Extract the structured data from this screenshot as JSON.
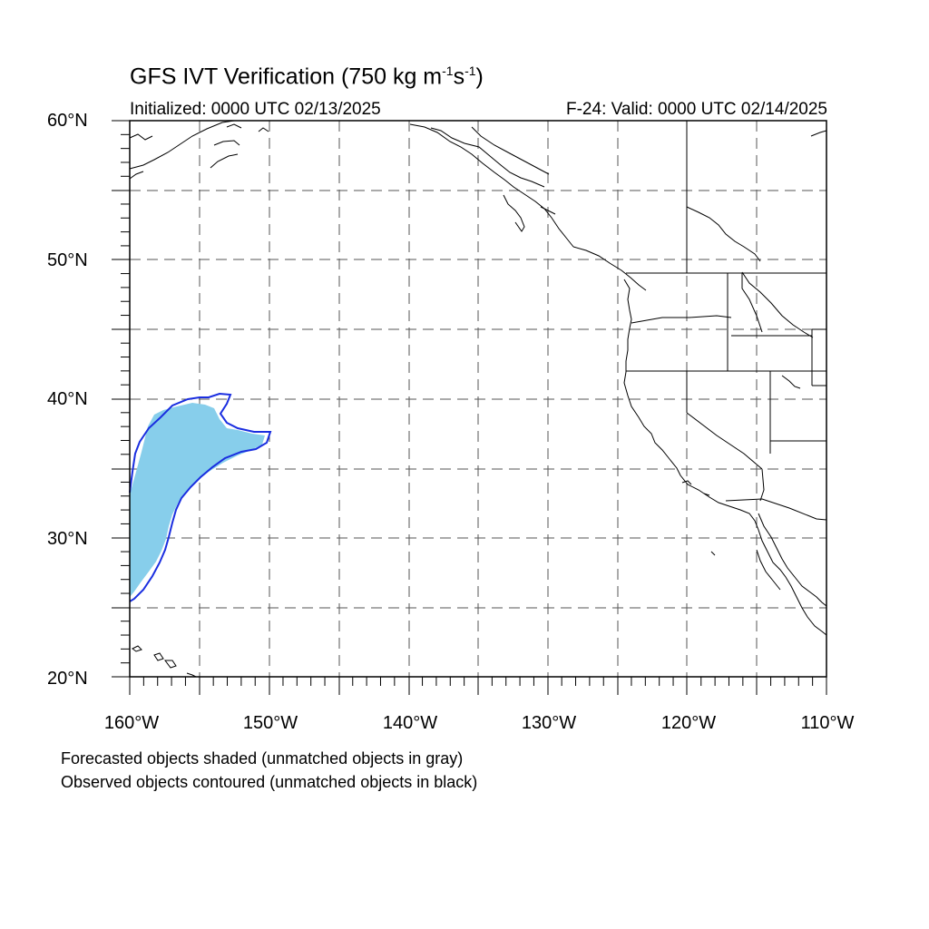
{
  "title": {
    "main": "GFS IVT Verification (750 kg m",
    "sup1": "-1",
    "mid": "s",
    "sup2": "-1",
    "end": ")"
  },
  "subtitle_left": "Initialized: 0000 UTC 02/13/2025",
  "subtitle_right": "F-24: Valid: 0000 UTC 02/14/2025",
  "lat_labels": [
    "60°N",
    "50°N",
    "40°N",
    "30°N",
    "20°N"
  ],
  "lon_labels": [
    "160°W",
    "150°W",
    "140°W",
    "130°W",
    "120°W",
    "110°W"
  ],
  "notes": [
    "Forecasted objects shaded (unmatched objects in gray)",
    "Observed objects contoured (unmatched objects in black)"
  ],
  "map": {
    "extent": {
      "lon": [
        -160,
        -110
      ],
      "lat": [
        20,
        60
      ]
    },
    "gridlines": "dashed",
    "colors": {
      "forecast_fill": "#87CEEB",
      "observed_contour": "#1a2ee0",
      "coastline": "#000000"
    }
  }
}
